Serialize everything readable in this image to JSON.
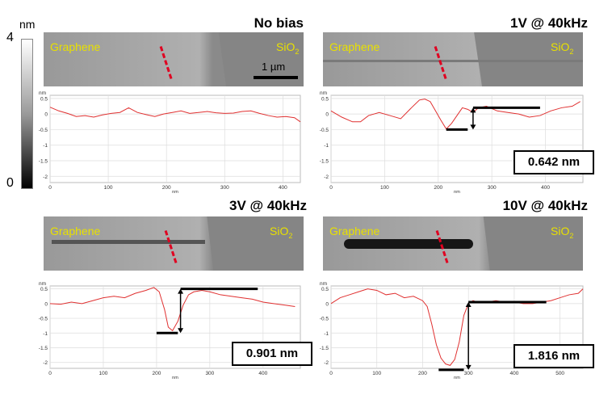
{
  "colorbar": {
    "unit": "nm",
    "max_label": "4",
    "min_label": "0"
  },
  "scale_bar": {
    "label": "1 µm"
  },
  "labels": {
    "graphene": "Graphene",
    "sio2_main": "SiO",
    "sio2_sub": "2"
  },
  "panels": [
    {
      "title": "No bias",
      "measurement": ""
    },
    {
      "title": "1V @ 40kHz",
      "measurement": "0.642 nm"
    },
    {
      "title": "3V @ 40kHz",
      "measurement": "0.901 nm"
    },
    {
      "title": "10V @ 40kHz",
      "measurement": "1.816 nm"
    }
  ],
  "colors": {
    "trace": "#e03030",
    "label": "#e8e000",
    "grid": "#dddddd"
  },
  "chart_data": [
    {
      "type": "line",
      "title": "No bias",
      "ylabel": "nm",
      "xlabel": "nm",
      "xlim": [
        0,
        430
      ],
      "ylim": [
        -2.2,
        0.6
      ],
      "xticks": [
        0,
        100,
        200,
        300,
        400
      ],
      "yticks": [
        0.5,
        0,
        -0.5,
        -1,
        -1.5,
        -2
      ],
      "ytick_labels": [
        "0.5",
        "0",
        "-0.5",
        "-1",
        "-1.5",
        "-2"
      ],
      "x": [
        0,
        15,
        30,
        45,
        60,
        75,
        90,
        105,
        120,
        135,
        150,
        165,
        180,
        195,
        210,
        225,
        240,
        255,
        270,
        285,
        300,
        315,
        330,
        345,
        360,
        375,
        390,
        405,
        420,
        430
      ],
      "y": [
        0.22,
        0.1,
        0.02,
        -0.08,
        -0.05,
        -0.1,
        -0.03,
        0.02,
        0.05,
        0.2,
        0.05,
        -0.02,
        -0.08,
        0.0,
        0.05,
        0.1,
        0.02,
        0.05,
        0.08,
        0.04,
        0.02,
        0.03,
        0.08,
        0.1,
        0.02,
        -0.05,
        -0.1,
        -0.08,
        -0.12,
        -0.25
      ]
    },
    {
      "type": "line",
      "title": "1V @ 40kHz",
      "ylabel": "nm",
      "xlabel": "nm",
      "xlim": [
        0,
        470
      ],
      "ylim": [
        -2.2,
        0.6
      ],
      "xticks": [
        0,
        100,
        200,
        300,
        400
      ],
      "yticks": [
        0.5,
        0,
        -0.5,
        -1,
        -1.5,
        -2
      ],
      "ytick_labels": [
        "0.5",
        "0",
        "-0.5",
        "-1",
        "-1.5",
        "-2"
      ],
      "x": [
        0,
        20,
        40,
        55,
        70,
        90,
        110,
        130,
        150,
        165,
        175,
        185,
        195,
        205,
        215,
        225,
        235,
        245,
        255,
        265,
        275,
        290,
        310,
        330,
        350,
        370,
        390,
        410,
        430,
        450,
        465
      ],
      "y": [
        0.1,
        -0.1,
        -0.25,
        -0.25,
        -0.05,
        0.05,
        -0.05,
        -0.15,
        0.2,
        0.45,
        0.48,
        0.4,
        0.1,
        -0.2,
        -0.48,
        -0.3,
        -0.05,
        0.2,
        0.15,
        0.05,
        0.2,
        0.25,
        0.1,
        0.05,
        0.0,
        -0.1,
        -0.05,
        0.1,
        0.2,
        0.25,
        0.4
      ],
      "annotation": {
        "low_y": -0.5,
        "high_y": 0.2,
        "low_x": [
          215,
          255
        ],
        "high_x": [
          265,
          390
        ],
        "arrow_x": 265
      }
    },
    {
      "type": "line",
      "title": "3V @ 40kHz",
      "ylabel": "nm",
      "xlabel": "nm",
      "xlim": [
        0,
        470
      ],
      "ylim": [
        -2.2,
        0.6
      ],
      "xticks": [
        0,
        100,
        200,
        300,
        400
      ],
      "yticks": [
        0.5,
        0,
        -0.5,
        -1,
        -1.5,
        -2
      ],
      "ytick_labels": [
        "0.5",
        "0",
        "-0.5",
        "-1",
        "-1.5",
        "-2"
      ],
      "x": [
        0,
        20,
        40,
        60,
        80,
        100,
        120,
        140,
        160,
        180,
        195,
        205,
        215,
        222,
        230,
        240,
        250,
        260,
        270,
        285,
        300,
        320,
        340,
        360,
        380,
        400,
        420,
        440,
        460
      ],
      "y": [
        0.0,
        -0.02,
        0.05,
        0.0,
        0.1,
        0.2,
        0.25,
        0.2,
        0.35,
        0.45,
        0.55,
        0.4,
        -0.2,
        -0.8,
        -0.92,
        -0.6,
        -0.05,
        0.3,
        0.4,
        0.45,
        0.4,
        0.3,
        0.25,
        0.2,
        0.15,
        0.05,
        0.0,
        -0.05,
        -0.1
      ],
      "annotation": {
        "low_y": -1.0,
        "high_y": 0.5,
        "low_x": [
          200,
          240
        ],
        "high_x": [
          245,
          390
        ],
        "arrow_x": 245
      }
    },
    {
      "type": "line",
      "title": "10V @ 40kHz",
      "ylabel": "nm",
      "xlabel": "nm",
      "xlim": [
        0,
        550
      ],
      "ylim": [
        -2.2,
        0.6
      ],
      "xticks": [
        0,
        100,
        200,
        300,
        400,
        500
      ],
      "yticks": [
        0.5,
        0,
        -0.5,
        -1,
        -1.5,
        -2
      ],
      "ytick_labels": [
        "0.5",
        "0",
        "-0.5",
        "-1",
        "-1.5",
        "-2"
      ],
      "x": [
        0,
        20,
        40,
        60,
        80,
        100,
        120,
        140,
        160,
        180,
        200,
        210,
        220,
        230,
        240,
        250,
        260,
        270,
        280,
        290,
        300,
        310,
        320,
        340,
        360,
        380,
        400,
        420,
        440,
        460,
        480,
        500,
        520,
        540,
        550
      ],
      "y": [
        0.0,
        0.2,
        0.3,
        0.4,
        0.5,
        0.45,
        0.3,
        0.35,
        0.2,
        0.25,
        0.1,
        -0.1,
        -0.7,
        -1.4,
        -1.85,
        -2.05,
        -2.1,
        -1.9,
        -1.3,
        -0.4,
        0.0,
        0.1,
        0.05,
        0.05,
        0.1,
        0.05,
        0.05,
        0.0,
        0.0,
        0.05,
        0.1,
        0.2,
        0.3,
        0.35,
        0.5
      ],
      "annotation": {
        "low_y": -2.25,
        "high_y": 0.05,
        "low_x": [
          235,
          290
        ],
        "high_x": [
          300,
          470
        ],
        "arrow_x": 300
      }
    }
  ]
}
